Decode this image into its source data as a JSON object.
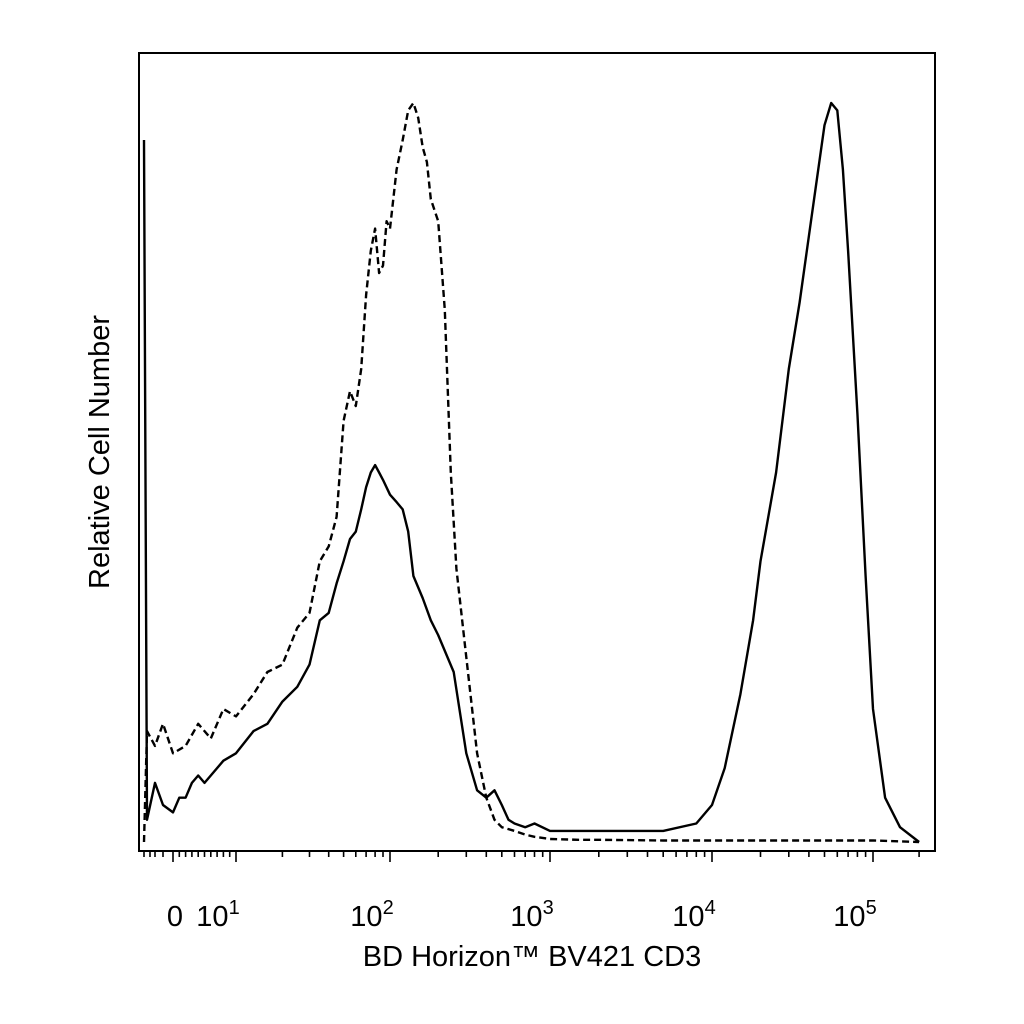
{
  "chart_data": {
    "type": "line",
    "title": "",
    "xlabel": "BD Horizon™ BV421 CD3",
    "ylabel": "Relative Cell Number",
    "x_scale": "biexponential (log above 10^1)",
    "xlim": [
      -5,
      250000
    ],
    "ylim": [
      0,
      100
    ],
    "grid": false,
    "legend": "none",
    "x_ticks": [
      {
        "value": 0,
        "base": "0",
        "exp": ""
      },
      {
        "value": 10,
        "base": "10",
        "exp": "1"
      },
      {
        "value": 100,
        "base": "10",
        "exp": "2"
      },
      {
        "value": 1000,
        "base": "10",
        "exp": "3"
      },
      {
        "value": 10000,
        "base": "10",
        "exp": "4"
      },
      {
        "value": 100000,
        "base": "10",
        "exp": "5"
      }
    ],
    "series": [
      {
        "style": "dashed",
        "color": "#000000",
        "x": [
          -4,
          -3.5,
          -2,
          -1,
          0,
          2,
          4,
          6,
          8,
          10,
          13,
          16,
          20,
          25,
          30,
          35,
          40,
          45,
          50,
          55,
          60,
          65,
          70,
          75,
          80,
          85,
          90,
          95,
          100,
          110,
          120,
          130,
          140,
          150,
          160,
          170,
          180,
          200,
          220,
          240,
          260,
          300,
          350,
          400,
          450,
          500,
          600,
          700,
          800,
          1000,
          1500,
          2000,
          5000,
          10000,
          50000,
          100000,
          200000
        ],
        "y": [
          0,
          15,
          13,
          16,
          12,
          13,
          16,
          14,
          18,
          17,
          20,
          23,
          24,
          29,
          31,
          38,
          40,
          44,
          57,
          61,
          59,
          64,
          74,
          80,
          83,
          77,
          78,
          84,
          83,
          91,
          95,
          99,
          100,
          98,
          94,
          92,
          87,
          84,
          72,
          50,
          37,
          25,
          12,
          6,
          3,
          2,
          1.5,
          1,
          0.7,
          0.4,
          0.3,
          0.3,
          0.2,
          0.2,
          0.2,
          0.2,
          0
        ]
      },
      {
        "style": "solid",
        "color": "#000000",
        "x": [
          -4,
          -3.5,
          -2,
          -1,
          0,
          1,
          2,
          3,
          4,
          5,
          6,
          8,
          10,
          13,
          16,
          20,
          25,
          30,
          35,
          40,
          45,
          50,
          55,
          60,
          65,
          70,
          75,
          80,
          85,
          90,
          100,
          110,
          120,
          130,
          140,
          160,
          180,
          200,
          250,
          300,
          350,
          400,
          450,
          500,
          550,
          600,
          700,
          800,
          1000,
          1200,
          1500,
          2000,
          3000,
          5000,
          8000,
          10000,
          12000,
          15000,
          18000,
          20000,
          25000,
          30000,
          35000,
          40000,
          45000,
          50000,
          55000,
          60000,
          65000,
          70000,
          80000,
          90000,
          100000,
          120000,
          150000,
          200000
        ],
        "y": [
          95,
          3,
          8,
          5,
          4,
          6,
          6,
          8,
          9,
          8,
          9,
          11,
          12,
          15,
          16,
          19,
          21,
          24,
          30,
          31,
          35,
          38,
          41,
          42,
          45,
          48,
          50,
          51,
          50,
          49,
          47,
          46,
          45,
          42,
          36,
          33,
          30,
          28,
          23,
          12,
          7,
          6,
          7,
          5,
          3,
          2.5,
          2,
          2.5,
          1.5,
          1.5,
          1.5,
          1.5,
          1.5,
          1.5,
          2.5,
          5,
          10,
          20,
          30,
          38,
          50,
          64,
          73,
          82,
          90,
          97,
          100,
          99,
          91,
          80,
          58,
          36,
          18,
          6,
          2,
          0
        ]
      }
    ]
  }
}
